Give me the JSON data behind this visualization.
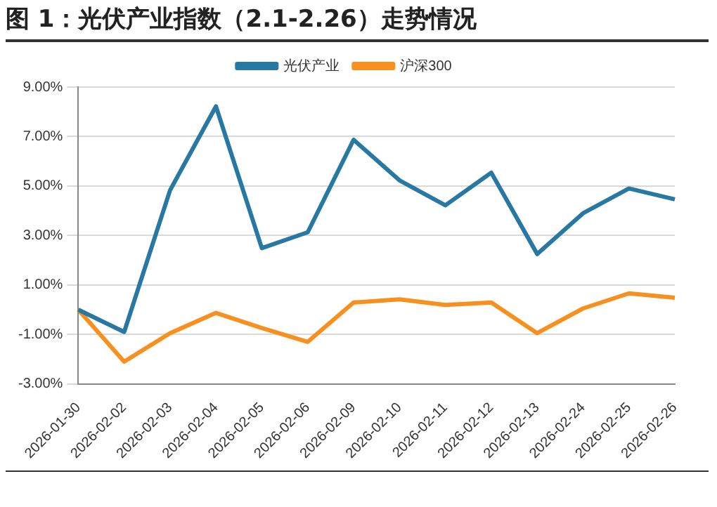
{
  "chart_data": {
    "type": "line",
    "title": "图 1：光伏产业指数（2.1-2.26）走势情况",
    "categories": [
      "2026-01-30",
      "2026-02-02",
      "2026-02-03",
      "2026-02-04",
      "2026-02-05",
      "2026-02-06",
      "2026-02-09",
      "2026-02-10",
      "2026-02-11",
      "2026-02-12",
      "2026-02-13",
      "2026-02-24",
      "2026-02-25",
      "2026-02-26"
    ],
    "series": [
      {
        "name": "光伏产业",
        "color": "#2878a4",
        "values": [
          0,
          -0.9,
          4.83,
          8.22,
          2.49,
          3.13,
          6.87,
          5.23,
          4.22,
          5.54,
          2.25,
          3.9,
          4.9,
          4.46
        ]
      },
      {
        "name": "沪深300",
        "color": "#f7901e",
        "values": [
          0,
          -2.1,
          -0.95,
          -0.13,
          -0.74,
          -1.3,
          0.29,
          0.42,
          0.19,
          0.29,
          -0.95,
          0.05,
          0.66,
          0.48
        ]
      }
    ],
    "ylim": [
      -3,
      9
    ],
    "yticks": [
      {
        "value": -3,
        "label": "-3.00%"
      },
      {
        "value": -1,
        "label": "-1.00%"
      },
      {
        "value": 1,
        "label": "1.00%"
      },
      {
        "value": 3,
        "label": "3.00%"
      },
      {
        "value": 5,
        "label": "5.00%"
      },
      {
        "value": 7,
        "label": "7.00%"
      },
      {
        "value": 9,
        "label": "9.00%"
      }
    ],
    "grid": "y",
    "legend": "top",
    "marker": "none",
    "line_style": "solid"
  }
}
